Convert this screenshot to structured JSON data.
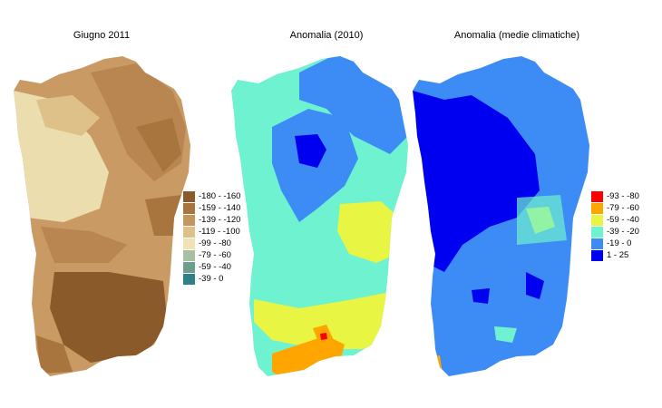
{
  "panels": [
    {
      "title": "Giugno 2011",
      "legend": [
        {
          "label": "-180 - -160",
          "color": "#8B5A2B"
        },
        {
          "label": "-159 - -140",
          "color": "#A9753E"
        },
        {
          "label": "-139 - -120",
          "color": "#C4955C"
        },
        {
          "label": "-119 - -100",
          "color": "#DEC089"
        },
        {
          "label": "-99 - -80",
          "color": "#EFE2B5"
        },
        {
          "label": "-79 - -60",
          "color": "#A8BFA0"
        },
        {
          "label": "-59 - -40",
          "color": "#6E9E8E"
        },
        {
          "label": "-39 - 0",
          "color": "#2E7F86"
        }
      ]
    },
    {
      "title": "Anomalia (2010)"
    },
    {
      "title": "Anomalia (medie climatiche)",
      "legend": [
        {
          "label": "-93 - -80",
          "color": "#FF0000"
        },
        {
          "label": "-79 - -60",
          "color": "#FFA500"
        },
        {
          "label": "-59 - -40",
          "color": "#E8F542"
        },
        {
          "label": "-39 - -20",
          "color": "#6FF2CF"
        },
        {
          "label": "-19 - 0",
          "color": "#3D8BF5"
        },
        {
          "label": "1 - 25",
          "color": "#0000F0"
        }
      ]
    }
  ],
  "colors": {
    "brown_dark": "#8B5A2B",
    "brown_mid": "#B98550",
    "brown_light": "#D2A670",
    "beige": "#ECDDAE",
    "cyan": "#6FF2CF",
    "sky": "#3D8BF5",
    "blue": "#0000F0",
    "yellow": "#E8F542",
    "orange": "#FFA500",
    "red": "#FF0000"
  }
}
